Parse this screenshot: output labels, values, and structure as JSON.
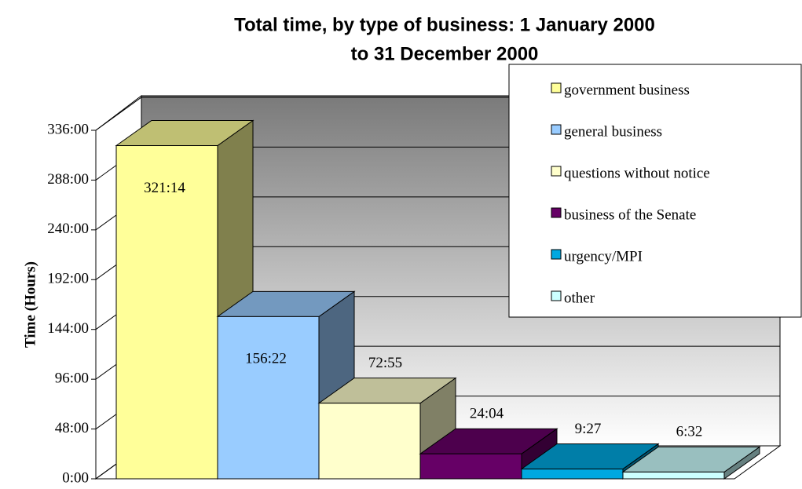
{
  "chart_data": {
    "type": "bar3d",
    "title": [
      "Total time, by type of business: 1 January 2000",
      "to 31 December 2000"
    ],
    "y_label": "Time (Hours)",
    "categories": [
      "government business",
      "general business",
      "questions without notice",
      "business of the Senate",
      "urgency/MPI",
      "other"
    ],
    "values": [
      321.2333,
      156.3667,
      72.9167,
      24.0667,
      9.45,
      6.5333
    ],
    "value_labels": [
      "321:14",
      "156:22",
      "72:55",
      "24:04",
      "9:27",
      "6:32"
    ],
    "colors": [
      "#ffff99",
      "#99ccff",
      "#ffffcc",
      "#660066",
      "#00a8e0",
      "#ccffff"
    ],
    "ylim": [
      0,
      336
    ],
    "yticks": [
      {
        "value": 0,
        "label": "0:00"
      },
      {
        "value": 48,
        "label": "48:00"
      },
      {
        "value": 96,
        "label": "96:00"
      },
      {
        "value": 144,
        "label": "144:00"
      },
      {
        "value": 192,
        "label": "192:00"
      },
      {
        "value": 240,
        "label": "240:00"
      },
      {
        "value": 288,
        "label": "288:00"
      },
      {
        "value": 336,
        "label": "336:00"
      }
    ],
    "grid": true,
    "legend": "upper right"
  }
}
